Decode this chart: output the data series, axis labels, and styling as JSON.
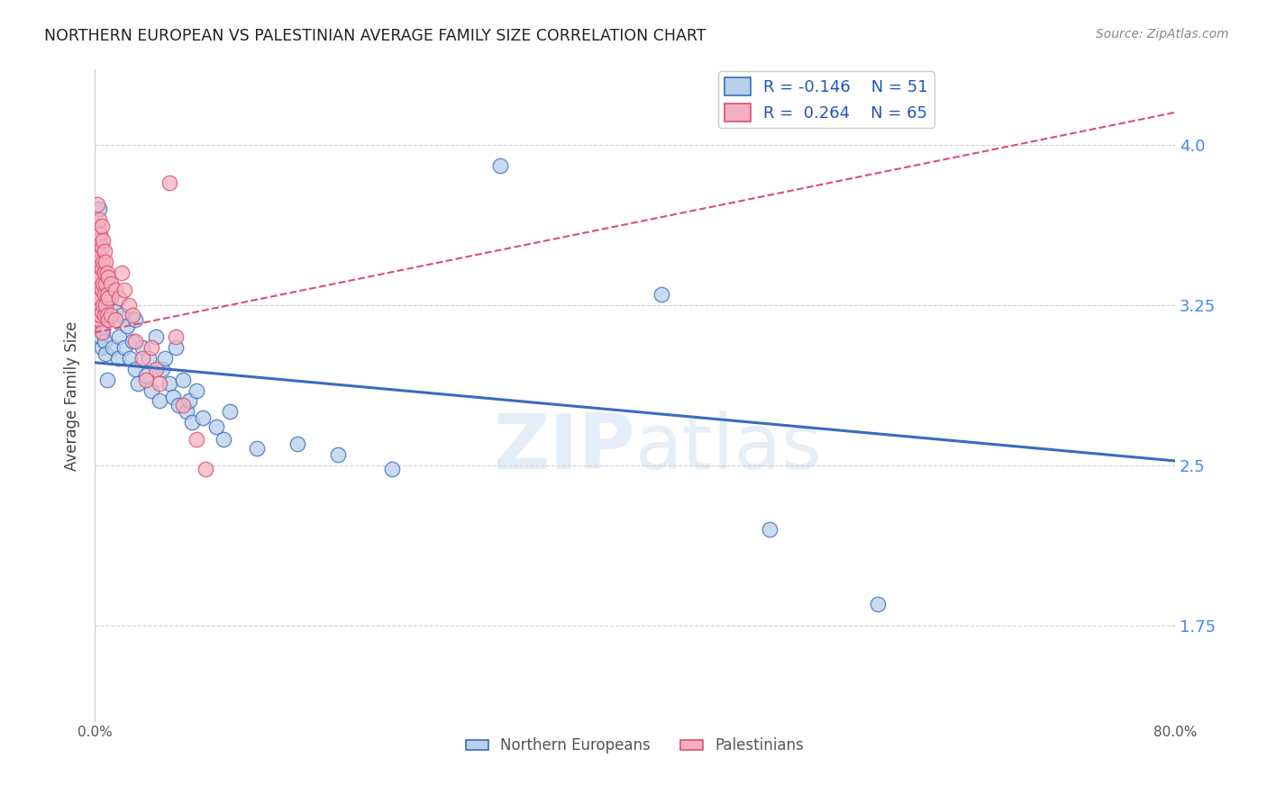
{
  "title": "NORTHERN EUROPEAN VS PALESTINIAN AVERAGE FAMILY SIZE CORRELATION CHART",
  "source": "Source: ZipAtlas.com",
  "ylabel": "Average Family Size",
  "yticks_right": [
    1.75,
    2.5,
    3.25,
    4.0
  ],
  "xlim": [
    0.0,
    0.8
  ],
  "ylim": [
    1.3,
    4.35
  ],
  "watermark": "ZIPatlas",
  "legend_r_blue": "R = -0.146",
  "legend_n_blue": "N = 51",
  "legend_r_pink": "R =  0.264",
  "legend_n_pink": "N = 65",
  "blue_color": "#b8d0ea",
  "pink_color": "#f5b0c0",
  "blue_line_color": "#3a6bbf",
  "pink_line_color": "#d95070",
  "blue_scatter": [
    [
      0.002,
      3.17
    ],
    [
      0.003,
      3.7
    ],
    [
      0.004,
      3.1
    ],
    [
      0.005,
      3.05
    ],
    [
      0.006,
      3.12
    ],
    [
      0.007,
      3.08
    ],
    [
      0.008,
      3.02
    ],
    [
      0.009,
      2.9
    ],
    [
      0.01,
      3.18
    ],
    [
      0.012,
      3.28
    ],
    [
      0.013,
      3.05
    ],
    [
      0.015,
      3.22
    ],
    [
      0.017,
      3.0
    ],
    [
      0.018,
      3.1
    ],
    [
      0.02,
      3.2
    ],
    [
      0.022,
      3.05
    ],
    [
      0.024,
      3.15
    ],
    [
      0.026,
      3.0
    ],
    [
      0.028,
      3.08
    ],
    [
      0.03,
      2.95
    ],
    [
      0.03,
      3.18
    ],
    [
      0.032,
      2.88
    ],
    [
      0.035,
      3.05
    ],
    [
      0.038,
      2.92
    ],
    [
      0.04,
      3.0
    ],
    [
      0.042,
      2.85
    ],
    [
      0.045,
      3.1
    ],
    [
      0.048,
      2.8
    ],
    [
      0.05,
      2.95
    ],
    [
      0.052,
      3.0
    ],
    [
      0.055,
      2.88
    ],
    [
      0.058,
      2.82
    ],
    [
      0.06,
      3.05
    ],
    [
      0.062,
      2.78
    ],
    [
      0.065,
      2.9
    ],
    [
      0.068,
      2.75
    ],
    [
      0.07,
      2.8
    ],
    [
      0.072,
      2.7
    ],
    [
      0.075,
      2.85
    ],
    [
      0.08,
      2.72
    ],
    [
      0.09,
      2.68
    ],
    [
      0.095,
      2.62
    ],
    [
      0.1,
      2.75
    ],
    [
      0.12,
      2.58
    ],
    [
      0.15,
      2.6
    ],
    [
      0.18,
      2.55
    ],
    [
      0.22,
      2.48
    ],
    [
      0.3,
      3.9
    ],
    [
      0.42,
      3.3
    ],
    [
      0.5,
      2.2
    ],
    [
      0.58,
      1.85
    ]
  ],
  "pink_scatter": [
    [
      0.001,
      3.55
    ],
    [
      0.001,
      3.48
    ],
    [
      0.001,
      3.35
    ],
    [
      0.001,
      3.22
    ],
    [
      0.002,
      3.72
    ],
    [
      0.002,
      3.62
    ],
    [
      0.002,
      3.52
    ],
    [
      0.002,
      3.42
    ],
    [
      0.002,
      3.35
    ],
    [
      0.002,
      3.25
    ],
    [
      0.002,
      3.18
    ],
    [
      0.003,
      3.65
    ],
    [
      0.003,
      3.55
    ],
    [
      0.003,
      3.45
    ],
    [
      0.003,
      3.38
    ],
    [
      0.003,
      3.28
    ],
    [
      0.003,
      3.18
    ],
    [
      0.004,
      3.58
    ],
    [
      0.004,
      3.48
    ],
    [
      0.004,
      3.38
    ],
    [
      0.004,
      3.28
    ],
    [
      0.004,
      3.2
    ],
    [
      0.005,
      3.62
    ],
    [
      0.005,
      3.52
    ],
    [
      0.005,
      3.42
    ],
    [
      0.005,
      3.32
    ],
    [
      0.005,
      3.22
    ],
    [
      0.005,
      3.12
    ],
    [
      0.006,
      3.55
    ],
    [
      0.006,
      3.45
    ],
    [
      0.006,
      3.35
    ],
    [
      0.006,
      3.25
    ],
    [
      0.007,
      3.5
    ],
    [
      0.007,
      3.4
    ],
    [
      0.007,
      3.3
    ],
    [
      0.007,
      3.2
    ],
    [
      0.008,
      3.45
    ],
    [
      0.008,
      3.35
    ],
    [
      0.008,
      3.25
    ],
    [
      0.009,
      3.4
    ],
    [
      0.009,
      3.3
    ],
    [
      0.009,
      3.2
    ],
    [
      0.01,
      3.38
    ],
    [
      0.01,
      3.28
    ],
    [
      0.01,
      3.18
    ],
    [
      0.012,
      3.35
    ],
    [
      0.012,
      3.2
    ],
    [
      0.015,
      3.32
    ],
    [
      0.015,
      3.18
    ],
    [
      0.018,
      3.28
    ],
    [
      0.02,
      3.4
    ],
    [
      0.022,
      3.32
    ],
    [
      0.025,
      3.25
    ],
    [
      0.028,
      3.2
    ],
    [
      0.03,
      3.08
    ],
    [
      0.035,
      3.0
    ],
    [
      0.038,
      2.9
    ],
    [
      0.042,
      3.05
    ],
    [
      0.045,
      2.95
    ],
    [
      0.048,
      2.88
    ],
    [
      0.055,
      3.82
    ],
    [
      0.06,
      3.1
    ],
    [
      0.065,
      2.78
    ],
    [
      0.075,
      2.62
    ],
    [
      0.082,
      2.48
    ]
  ],
  "blue_trendline": [
    0.0,
    0.8,
    2.98,
    2.52
  ],
  "pink_trendline": [
    0.0,
    0.8,
    3.12,
    4.15
  ]
}
